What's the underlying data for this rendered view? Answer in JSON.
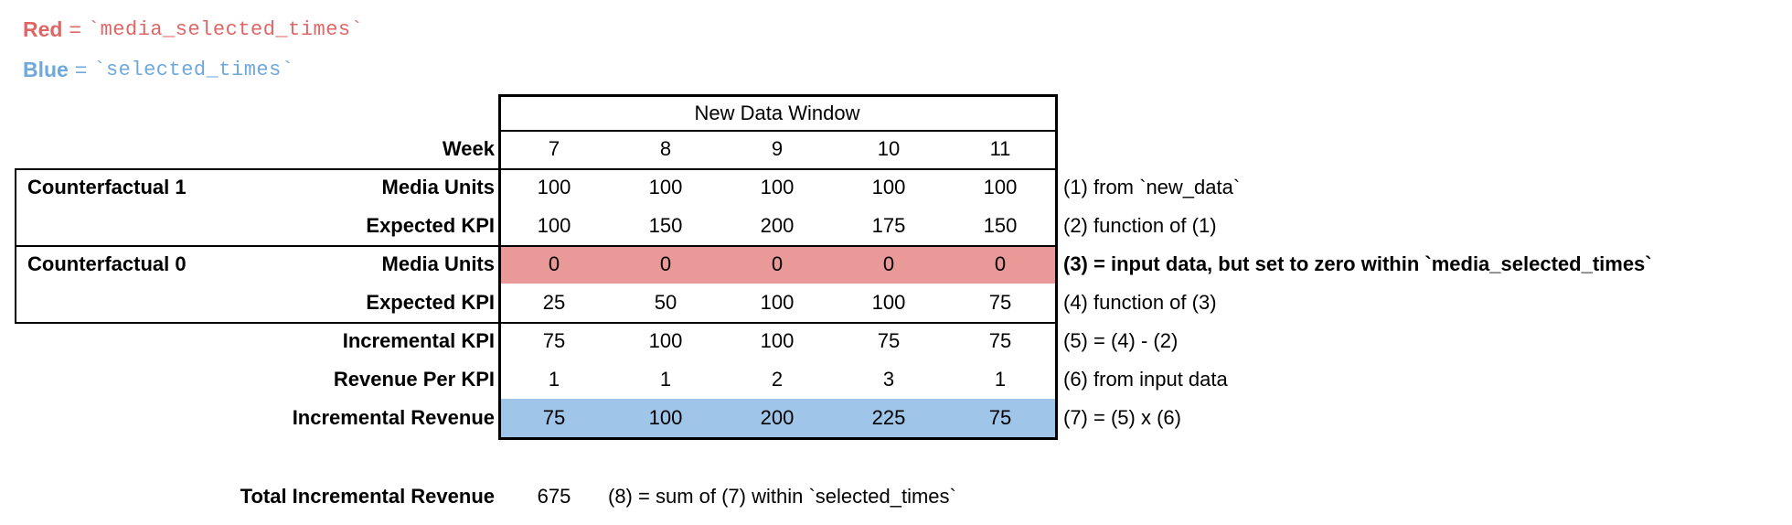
{
  "legend": [
    {
      "label": "Red",
      "eq": "=",
      "code": "`media_selected_times`",
      "color": "red_text"
    },
    {
      "label": "Blue",
      "eq": "=",
      "code": "`selected_times`",
      "color": "blue_text"
    }
  ],
  "table": {
    "header": "New Data Window",
    "week_label": "Week",
    "weeks": [
      "7",
      "8",
      "9",
      "10",
      "11"
    ],
    "rows": [
      {
        "group": "Counterfactual 1",
        "label": "Media Units",
        "values": [
          "100",
          "100",
          "100",
          "100",
          "100"
        ],
        "annotation": "(1) from `new_data`",
        "fill": null,
        "annotation_bold": false
      },
      {
        "group": "",
        "label": "Expected KPI",
        "values": [
          "100",
          "150",
          "200",
          "175",
          "150"
        ],
        "annotation": "(2) function of (1)",
        "fill": null,
        "annotation_bold": false
      },
      {
        "group": "Counterfactual 0",
        "label": "Media Units",
        "values": [
          "0",
          "0",
          "0",
          "0",
          "0"
        ],
        "annotation": "(3) = input data, but set to zero within `media_selected_times`",
        "fill": "red_fill",
        "annotation_bold": true
      },
      {
        "group": "",
        "label": "Expected KPI",
        "values": [
          "25",
          "50",
          "100",
          "100",
          "75"
        ],
        "annotation": "(4) function of (3)",
        "fill": null,
        "annotation_bold": false
      },
      {
        "group": "",
        "label": "Incremental KPI",
        "values": [
          "75",
          "100",
          "100",
          "75",
          "75"
        ],
        "annotation": "(5) = (4) - (2)",
        "fill": null,
        "annotation_bold": false
      },
      {
        "group": "",
        "label": "Revenue Per KPI",
        "values": [
          "1",
          "1",
          "2",
          "3",
          "1"
        ],
        "annotation": "(6) from input data",
        "fill": null,
        "annotation_bold": false
      },
      {
        "group": "",
        "label": "Incremental Revenue",
        "values": [
          "75",
          "100",
          "200",
          "225",
          "75"
        ],
        "annotation": "(7) = (5) x (6)",
        "fill": "blue_fill",
        "annotation_bold": false
      }
    ]
  },
  "total": {
    "label": "Total Incremental Revenue",
    "value": "675",
    "annotation": "(8) = sum of (7) within `selected_times`"
  },
  "colors": {
    "red_text": "#e06666",
    "blue_text": "#6fa8dc",
    "red_fill": "#ea9999",
    "blue_fill": "#9fc5e8",
    "border": "#000000"
  }
}
